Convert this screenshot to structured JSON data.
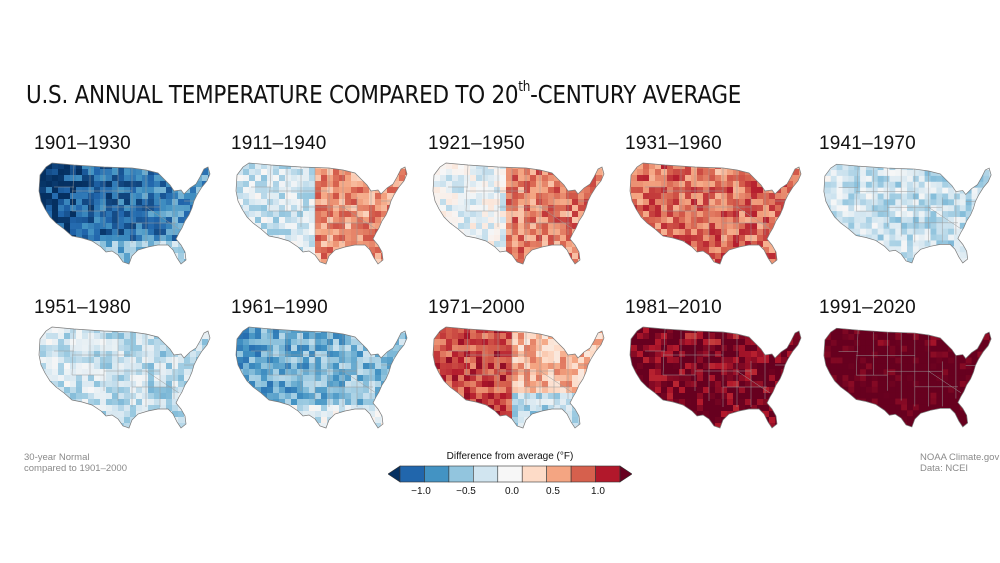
{
  "title": {
    "main": "U.S. ANNUAL TEMPERATURE COMPARED TO 20",
    "sup": "th",
    "rest": "-CENTURY AVERAGE"
  },
  "panels": [
    {
      "period": "1901–1930",
      "dominant": "cool",
      "intensity": 0.9
    },
    {
      "period": "1911–1940",
      "dominant": "mixed",
      "intensity": 0.5
    },
    {
      "period": "1921–1950",
      "dominant": "warm-east",
      "intensity": 0.45
    },
    {
      "period": "1931–1960",
      "dominant": "warm",
      "intensity": 0.4
    },
    {
      "period": "1941–1970",
      "dominant": "cool-light",
      "intensity": 0.3
    },
    {
      "period": "1951–1980",
      "dominant": "cool-light",
      "intensity": 0.35
    },
    {
      "period": "1961–1990",
      "dominant": "cool",
      "intensity": 0.5
    },
    {
      "period": "1971–2000",
      "dominant": "warm-west",
      "intensity": 0.55
    },
    {
      "period": "1981–2010",
      "dominant": "warm",
      "intensity": 0.85
    },
    {
      "period": "1991–2020",
      "dominant": "warm",
      "intensity": 1.0
    }
  ],
  "notes": {
    "left_line1": "30-year Normal",
    "left_line2": "compared to 1901–2000",
    "right_line1": "NOAA Climate.gov",
    "right_line2": "Data: NCEI"
  },
  "legend": {
    "title": "Difference from average (°F)",
    "ticks": [
      "−1.0",
      "−0.5",
      "0.0",
      "0.5",
      "1.0"
    ],
    "colors": [
      "#2166ac",
      "#4393c3",
      "#92c5de",
      "#d1e5f0",
      "#f7f7f7",
      "#fddbc7",
      "#f4a582",
      "#d6604d",
      "#b2182b"
    ],
    "under_color": "#053061",
    "over_color": "#67001f"
  }
}
